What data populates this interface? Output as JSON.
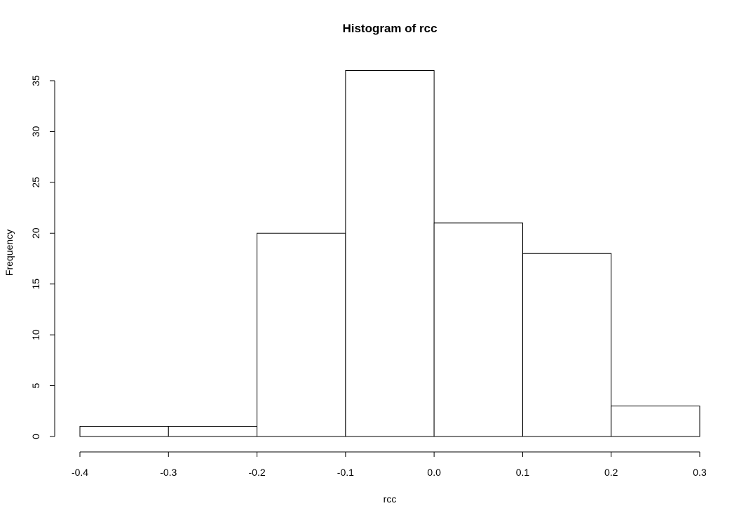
{
  "chart_data": {
    "type": "bar",
    "title": "Histogram of rcc",
    "xlabel": "rcc",
    "ylabel": "Frequency",
    "bins": [
      {
        "start": -0.4,
        "end": -0.3,
        "count": 1
      },
      {
        "start": -0.3,
        "end": -0.2,
        "count": 1
      },
      {
        "start": -0.2,
        "end": -0.1,
        "count": 20
      },
      {
        "start": -0.1,
        "end": 0.0,
        "count": 36
      },
      {
        "start": 0.0,
        "end": 0.1,
        "count": 21
      },
      {
        "start": 0.1,
        "end": 0.2,
        "count": 18
      },
      {
        "start": 0.2,
        "end": 0.3,
        "count": 3
      }
    ],
    "xlim": [
      -0.4,
      0.3
    ],
    "ylim": [
      0,
      35
    ],
    "x_ticks": [
      "-0.4",
      "-0.3",
      "-0.2",
      "-0.1",
      "0.0",
      "0.1",
      "0.2",
      "0.3"
    ],
    "y_ticks": [
      "0",
      "5",
      "10",
      "15",
      "20",
      "25",
      "30",
      "35"
    ],
    "grid": false,
    "colors": {
      "bar_fill": "#ffffff",
      "bar_stroke": "#000000"
    }
  }
}
